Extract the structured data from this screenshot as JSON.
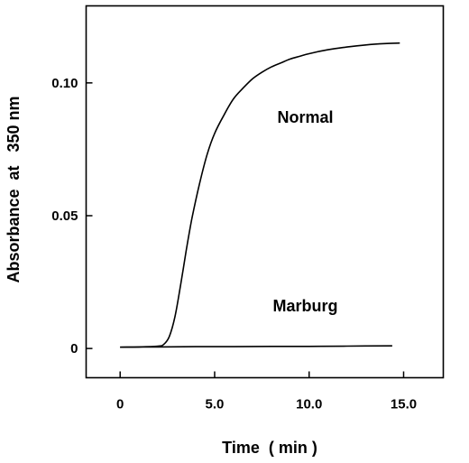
{
  "chart_data": {
    "type": "line",
    "title": "",
    "xlabel": "Time  ( min )",
    "ylabel": "Absorbance  at   350 nm",
    "xlim": [
      -1.8,
      17.1
    ],
    "ylim": [
      -0.011,
      0.129
    ],
    "x_ticks": [
      0,
      5,
      10,
      15
    ],
    "x_tick_labels": [
      "0",
      "5.0",
      "10.0",
      "15.0"
    ],
    "y_ticks": [
      0,
      0.05,
      0.1
    ],
    "y_tick_labels": [
      "0",
      "0.05",
      "0.10"
    ],
    "grid": false,
    "legend": "none",
    "series": [
      {
        "name": "Normal",
        "label_at": [
          9.8,
          0.085
        ],
        "x": [
          0,
          1.0,
          2.0,
          2.3,
          2.6,
          2.9,
          3.2,
          3.5,
          3.8,
          4.2,
          4.6,
          5.0,
          5.5,
          6.0,
          6.5,
          7.0,
          7.5,
          8.0,
          8.5,
          9.0,
          9.5,
          10.0,
          11.0,
          12.0,
          13.0,
          14.0,
          14.8
        ],
        "y": [
          0.0005,
          0.0006,
          0.0009,
          0.0015,
          0.0045,
          0.012,
          0.024,
          0.037,
          0.049,
          0.062,
          0.073,
          0.081,
          0.088,
          0.094,
          0.098,
          0.1015,
          0.104,
          0.106,
          0.1075,
          0.109,
          0.11,
          0.111,
          0.1125,
          0.1135,
          0.1143,
          0.1148,
          0.115
        ]
      },
      {
        "name": "Marburg",
        "label_at": [
          9.8,
          0.014
        ],
        "x": [
          0,
          2.0,
          4.0,
          6.0,
          8.0,
          10.0,
          12.0,
          14.4
        ],
        "y": [
          0.0005,
          0.0006,
          0.0007,
          0.0007,
          0.0008,
          0.0008,
          0.0009,
          0.001
        ]
      }
    ]
  }
}
